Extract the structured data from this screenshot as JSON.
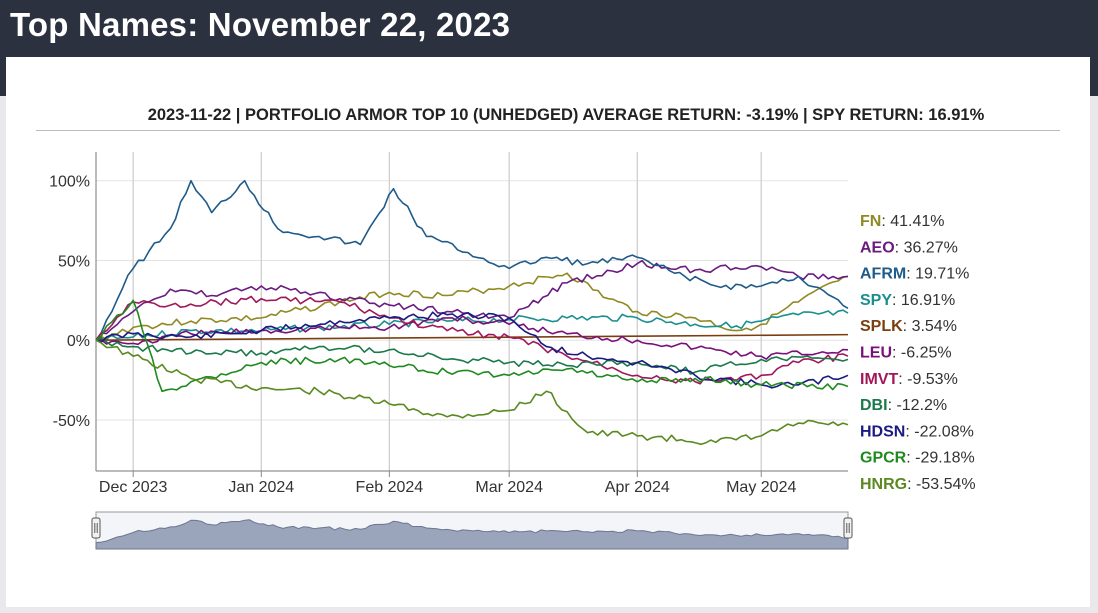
{
  "page_title": "Top Names: November 22, 2023",
  "chart_data": {
    "type": "line",
    "title": "2023-11-22 | PORTFOLIO ARMOR TOP 10 (UNHEDGED) AVERAGE RETURN: -3.19% | SPY RETURN: 16.91%",
    "ylim": [
      -82,
      118
    ],
    "y_ticks": [
      {
        "value": 100,
        "label": "100%"
      },
      {
        "value": 50,
        "label": "50%"
      },
      {
        "value": 0,
        "label": "0%"
      },
      {
        "value": -50,
        "label": "-50%"
      }
    ],
    "x_range": [
      "2023-11-22",
      "2024-05-22"
    ],
    "x_ticks": [
      {
        "date": "2023-12-01",
        "label": "Dec 2023"
      },
      {
        "date": "2024-01-01",
        "label": "Jan 2024"
      },
      {
        "date": "2024-02-01",
        "label": "Feb 2024"
      },
      {
        "date": "2024-03-01",
        "label": "Mar 2024"
      },
      {
        "date": "2024-04-01",
        "label": "Apr 2024"
      },
      {
        "date": "2024-05-01",
        "label": "May 2024"
      }
    ],
    "grid": true,
    "legend_position": "right",
    "series": [
      {
        "name": "FN",
        "label": "41.41%",
        "color": "#8f8a22",
        "points": [
          [
            "2023-11-22",
            0
          ],
          [
            "2023-12-01",
            8
          ],
          [
            "2023-12-15",
            12
          ],
          [
            "2024-01-01",
            14
          ],
          [
            "2024-01-20",
            24
          ],
          [
            "2024-02-01",
            30
          ],
          [
            "2024-02-15",
            28
          ],
          [
            "2024-03-01",
            34
          ],
          [
            "2024-03-15",
            42
          ],
          [
            "2024-03-25",
            26
          ],
          [
            "2024-04-01",
            18
          ],
          [
            "2024-04-15",
            14
          ],
          [
            "2024-04-25",
            6
          ],
          [
            "2024-05-01",
            10
          ],
          [
            "2024-05-10",
            24
          ],
          [
            "2024-05-22",
            40
          ]
        ]
      },
      {
        "name": "AEO",
        "label": "36.27%",
        "color": "#6a1b80",
        "points": [
          [
            "2023-11-22",
            0
          ],
          [
            "2023-12-01",
            18
          ],
          [
            "2023-12-10",
            32
          ],
          [
            "2023-12-20",
            28
          ],
          [
            "2024-01-01",
            34
          ],
          [
            "2024-01-20",
            26
          ],
          [
            "2024-02-01",
            22
          ],
          [
            "2024-02-15",
            18
          ],
          [
            "2024-03-01",
            14
          ],
          [
            "2024-03-15",
            36
          ],
          [
            "2024-04-01",
            48
          ],
          [
            "2024-04-15",
            44
          ],
          [
            "2024-05-01",
            46
          ],
          [
            "2024-05-10",
            40
          ],
          [
            "2024-05-22",
            40
          ]
        ]
      },
      {
        "name": "AFRM",
        "label": "19.71%",
        "color": "#1f5b8a",
        "points": [
          [
            "2023-11-22",
            0
          ],
          [
            "2023-12-01",
            45
          ],
          [
            "2023-12-10",
            70
          ],
          [
            "2023-12-15",
            100
          ],
          [
            "2023-12-20",
            80
          ],
          [
            "2023-12-28",
            100
          ],
          [
            "2024-01-05",
            70
          ],
          [
            "2024-01-15",
            65
          ],
          [
            "2024-01-25",
            60
          ],
          [
            "2024-02-02",
            95
          ],
          [
            "2024-02-10",
            65
          ],
          [
            "2024-02-20",
            55
          ],
          [
            "2024-03-01",
            45
          ],
          [
            "2024-03-10",
            52
          ],
          [
            "2024-03-20",
            48
          ],
          [
            "2024-04-01",
            52
          ],
          [
            "2024-04-10",
            42
          ],
          [
            "2024-04-20",
            34
          ],
          [
            "2024-05-01",
            34
          ],
          [
            "2024-05-10",
            40
          ],
          [
            "2024-05-22",
            20
          ]
        ]
      },
      {
        "name": "SPY",
        "label": "16.91%",
        "color": "#1a8f8f",
        "points": [
          [
            "2023-11-22",
            0
          ],
          [
            "2023-12-01",
            2
          ],
          [
            "2023-12-15",
            6
          ],
          [
            "2024-01-01",
            6
          ],
          [
            "2024-01-15",
            8
          ],
          [
            "2024-02-01",
            10
          ],
          [
            "2024-02-15",
            12
          ],
          [
            "2024-03-01",
            13
          ],
          [
            "2024-03-15",
            14
          ],
          [
            "2024-04-01",
            14
          ],
          [
            "2024-04-15",
            10
          ],
          [
            "2024-04-25",
            9
          ],
          [
            "2024-05-01",
            12
          ],
          [
            "2024-05-10",
            16
          ],
          [
            "2024-05-22",
            17
          ]
        ]
      },
      {
        "name": "SPLK",
        "label": "3.54%",
        "color": "#7a3e10",
        "points": [
          [
            "2023-11-22",
            0
          ],
          [
            "2024-05-22",
            3.5
          ]
        ]
      },
      {
        "name": "LEU",
        "label": "-6.25%",
        "color": "#7a0f7a",
        "points": [
          [
            "2023-11-22",
            0
          ],
          [
            "2023-12-01",
            -2
          ],
          [
            "2023-12-15",
            4
          ],
          [
            "2024-01-01",
            6
          ],
          [
            "2024-01-20",
            8
          ],
          [
            "2024-02-01",
            8
          ],
          [
            "2024-02-15",
            14
          ],
          [
            "2024-03-01",
            10
          ],
          [
            "2024-03-15",
            4
          ],
          [
            "2024-04-01",
            0
          ],
          [
            "2024-04-20",
            -6
          ],
          [
            "2024-05-01",
            -10
          ],
          [
            "2024-05-22",
            -6
          ]
        ]
      },
      {
        "name": "IMVT",
        "label": "-9.53%",
        "color": "#a0185a",
        "points": [
          [
            "2023-11-22",
            0
          ],
          [
            "2023-12-01",
            24
          ],
          [
            "2023-12-10",
            22
          ],
          [
            "2024-01-01",
            26
          ],
          [
            "2024-01-20",
            24
          ],
          [
            "2024-02-01",
            14
          ],
          [
            "2024-02-15",
            6
          ],
          [
            "2024-03-01",
            2
          ],
          [
            "2024-03-15",
            -10
          ],
          [
            "2024-04-01",
            -22
          ],
          [
            "2024-04-15",
            -26
          ],
          [
            "2024-05-01",
            -22
          ],
          [
            "2024-05-10",
            -14
          ],
          [
            "2024-05-22",
            -10
          ]
        ]
      },
      {
        "name": "DBI",
        "label": "-12.2%",
        "color": "#1a7a4a",
        "points": [
          [
            "2023-11-22",
            0
          ],
          [
            "2023-12-01",
            -4
          ],
          [
            "2023-12-15",
            -8
          ],
          [
            "2024-01-01",
            -8
          ],
          [
            "2024-01-15",
            -4
          ],
          [
            "2024-02-01",
            -6
          ],
          [
            "2024-02-15",
            -12
          ],
          [
            "2024-03-01",
            -14
          ],
          [
            "2024-03-15",
            -16
          ],
          [
            "2024-04-01",
            -14
          ],
          [
            "2024-04-15",
            -20
          ],
          [
            "2024-05-01",
            -12
          ],
          [
            "2024-05-22",
            -12
          ]
        ]
      },
      {
        "name": "HDSN",
        "label": "-22.08%",
        "color": "#1a1a80",
        "points": [
          [
            "2023-11-22",
            0
          ],
          [
            "2023-12-01",
            4
          ],
          [
            "2023-12-15",
            2
          ],
          [
            "2024-01-01",
            6
          ],
          [
            "2024-01-20",
            12
          ],
          [
            "2024-02-01",
            14
          ],
          [
            "2024-02-15",
            16
          ],
          [
            "2024-03-01",
            14
          ],
          [
            "2024-03-10",
            -4
          ],
          [
            "2024-03-20",
            -10
          ],
          [
            "2024-04-01",
            -14
          ],
          [
            "2024-04-15",
            -22
          ],
          [
            "2024-05-01",
            -28
          ],
          [
            "2024-05-10",
            -28
          ],
          [
            "2024-05-22",
            -22
          ]
        ]
      },
      {
        "name": "GPCR",
        "label": "-29.18%",
        "color": "#1f8a1f",
        "points": [
          [
            "2023-11-22",
            0
          ],
          [
            "2023-12-01",
            25
          ],
          [
            "2023-12-08",
            -32
          ],
          [
            "2023-12-15",
            -26
          ],
          [
            "2024-01-01",
            -14
          ],
          [
            "2024-01-20",
            -12
          ],
          [
            "2024-02-01",
            -16
          ],
          [
            "2024-02-15",
            -20
          ],
          [
            "2024-03-01",
            -22
          ],
          [
            "2024-03-15",
            -18
          ],
          [
            "2024-04-01",
            -26
          ],
          [
            "2024-04-15",
            -24
          ],
          [
            "2024-05-01",
            -28
          ],
          [
            "2024-05-22",
            -29
          ]
        ]
      },
      {
        "name": "HNRG",
        "label": "-53.54%",
        "color": "#5a8a1f",
        "points": [
          [
            "2023-11-22",
            0
          ],
          [
            "2023-12-01",
            -10
          ],
          [
            "2023-12-15",
            -24
          ],
          [
            "2024-01-01",
            -30
          ],
          [
            "2024-01-15",
            -32
          ],
          [
            "2024-02-01",
            -40
          ],
          [
            "2024-02-15",
            -48
          ],
          [
            "2024-03-01",
            -44
          ],
          [
            "2024-03-10",
            -32
          ],
          [
            "2024-03-20",
            -58
          ],
          [
            "2024-04-01",
            -60
          ],
          [
            "2024-04-20",
            -64
          ],
          [
            "2024-05-01",
            -60
          ],
          [
            "2024-05-10",
            -52
          ],
          [
            "2024-05-22",
            -53
          ]
        ]
      }
    ]
  }
}
